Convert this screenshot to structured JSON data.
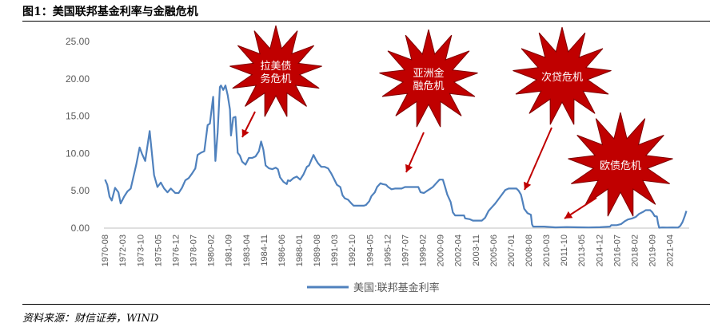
{
  "figure_title": "图1：美国联邦基金利率与金融危机",
  "source_note": "资料来源：财信证券，WIND",
  "chart_data": {
    "type": "line",
    "ylim": [
      0,
      25
    ],
    "y_ticks": [
      "0.00",
      "5.00",
      "10.00",
      "15.00",
      "20.00",
      "25.00"
    ],
    "grid": false,
    "legend_position": "bottom",
    "x_tick_labels": [
      "1970-08",
      "1972-03",
      "1973-10",
      "1975-05",
      "1976-12",
      "1978-07",
      "1980-02",
      "1981-09",
      "1983-04",
      "1984-11",
      "1986-06",
      "1988-01",
      "1989-08",
      "1991-03",
      "1992-10",
      "1994-05",
      "1995-12",
      "1997-07",
      "1999-02",
      "2000-09",
      "2002-04",
      "2003-11",
      "2005-06",
      "2007-01",
      "2008-08",
      "2010-03",
      "2011-10",
      "2013-05",
      "2014-12",
      "2016-07",
      "2018-02",
      "2019-09",
      "2021-04"
    ],
    "line_color": "#4f81bd",
    "series": [
      {
        "name": "美国:联邦基金利率",
        "points": [
          [
            1970.6,
            6.5
          ],
          [
            1970.8,
            5.8
          ],
          [
            1971.0,
            4.2
          ],
          [
            1971.2,
            3.7
          ],
          [
            1971.5,
            5.4
          ],
          [
            1971.8,
            4.8
          ],
          [
            1972.0,
            3.3
          ],
          [
            1972.3,
            4.2
          ],
          [
            1972.6,
            4.9
          ],
          [
            1972.9,
            5.3
          ],
          [
            1973.1,
            6.6
          ],
          [
            1973.4,
            8.5
          ],
          [
            1973.7,
            10.8
          ],
          [
            1973.9,
            10.0
          ],
          [
            1974.2,
            9.0
          ],
          [
            1974.5,
            12.0
          ],
          [
            1974.6,
            13.0
          ],
          [
            1974.8,
            10.0
          ],
          [
            1975.0,
            7.1
          ],
          [
            1975.3,
            5.5
          ],
          [
            1975.6,
            6.1
          ],
          [
            1975.9,
            5.3
          ],
          [
            1976.2,
            4.8
          ],
          [
            1976.5,
            5.3
          ],
          [
            1976.9,
            4.7
          ],
          [
            1977.2,
            4.7
          ],
          [
            1977.5,
            5.4
          ],
          [
            1977.8,
            6.4
          ],
          [
            1978.1,
            6.7
          ],
          [
            1978.4,
            7.3
          ],
          [
            1978.7,
            8.0
          ],
          [
            1978.9,
            9.8
          ],
          [
            1979.2,
            10.1
          ],
          [
            1979.5,
            10.3
          ],
          [
            1979.8,
            13.8
          ],
          [
            1980.0,
            14.0
          ],
          [
            1980.3,
            17.6
          ],
          [
            1980.5,
            9.0
          ],
          [
            1980.7,
            12.8
          ],
          [
            1980.9,
            18.9
          ],
          [
            1981.0,
            19.1
          ],
          [
            1981.2,
            18.5
          ],
          [
            1981.4,
            19.1
          ],
          [
            1981.6,
            17.8
          ],
          [
            1981.8,
            15.9
          ],
          [
            1981.9,
            12.4
          ],
          [
            1982.1,
            14.8
          ],
          [
            1982.3,
            14.9
          ],
          [
            1982.5,
            10.1
          ],
          [
            1982.7,
            9.7
          ],
          [
            1982.9,
            8.9
          ],
          [
            1983.2,
            8.5
          ],
          [
            1983.5,
            9.4
          ],
          [
            1983.8,
            9.4
          ],
          [
            1984.1,
            9.6
          ],
          [
            1984.4,
            10.3
          ],
          [
            1984.6,
            11.6
          ],
          [
            1984.8,
            10.5
          ],
          [
            1985.0,
            8.4
          ],
          [
            1985.3,
            8.0
          ],
          [
            1985.6,
            7.9
          ],
          [
            1985.9,
            8.1
          ],
          [
            1986.1,
            7.9
          ],
          [
            1986.3,
            6.8
          ],
          [
            1986.6,
            6.2
          ],
          [
            1986.9,
            5.9
          ],
          [
            1987.0,
            6.4
          ],
          [
            1987.2,
            6.3
          ],
          [
            1987.5,
            6.7
          ],
          [
            1987.8,
            6.9
          ],
          [
            1988.1,
            6.5
          ],
          [
            1988.4,
            7.2
          ],
          [
            1988.7,
            8.2
          ],
          [
            1988.9,
            8.4
          ],
          [
            1989.1,
            9.1
          ],
          [
            1989.3,
            9.8
          ],
          [
            1989.5,
            9.2
          ],
          [
            1989.7,
            8.7
          ],
          [
            1990.0,
            8.2
          ],
          [
            1990.3,
            8.2
          ],
          [
            1990.6,
            8.0
          ],
          [
            1990.9,
            7.3
          ],
          [
            1991.1,
            6.7
          ],
          [
            1991.4,
            5.8
          ],
          [
            1991.7,
            5.5
          ],
          [
            1991.9,
            4.4
          ],
          [
            1992.1,
            4.0
          ],
          [
            1992.4,
            3.8
          ],
          [
            1992.7,
            3.3
          ],
          [
            1992.9,
            3.0
          ],
          [
            1993.2,
            3.0
          ],
          [
            1993.5,
            3.0
          ],
          [
            1993.8,
            3.0
          ],
          [
            1994.0,
            3.1
          ],
          [
            1994.3,
            3.6
          ],
          [
            1994.5,
            4.3
          ],
          [
            1994.8,
            4.8
          ],
          [
            1995.0,
            5.5
          ],
          [
            1995.3,
            6.0
          ],
          [
            1995.5,
            5.9
          ],
          [
            1995.8,
            5.8
          ],
          [
            1996.0,
            5.5
          ],
          [
            1996.3,
            5.2
          ],
          [
            1996.6,
            5.3
          ],
          [
            1996.9,
            5.3
          ],
          [
            1997.2,
            5.3
          ],
          [
            1997.5,
            5.5
          ],
          [
            1997.8,
            5.5
          ],
          [
            1998.1,
            5.5
          ],
          [
            1998.4,
            5.5
          ],
          [
            1998.7,
            5.5
          ],
          [
            1998.9,
            4.8
          ],
          [
            1999.2,
            4.7
          ],
          [
            1999.5,
            5.0
          ],
          [
            1999.8,
            5.3
          ],
          [
            2000.0,
            5.5
          ],
          [
            2000.3,
            6.0
          ],
          [
            2000.6,
            6.5
          ],
          [
            2000.9,
            6.5
          ],
          [
            2001.1,
            5.5
          ],
          [
            2001.3,
            4.5
          ],
          [
            2001.6,
            3.5
          ],
          [
            2001.8,
            2.1
          ],
          [
            2002.0,
            1.7
          ],
          [
            2002.4,
            1.7
          ],
          [
            2002.8,
            1.7
          ],
          [
            2002.9,
            1.3
          ],
          [
            2003.3,
            1.2
          ],
          [
            2003.6,
            1.0
          ],
          [
            2004.0,
            1.0
          ],
          [
            2004.4,
            1.0
          ],
          [
            2004.7,
            1.4
          ],
          [
            2005.0,
            2.3
          ],
          [
            2005.3,
            2.8
          ],
          [
            2005.6,
            3.3
          ],
          [
            2005.9,
            3.9
          ],
          [
            2006.2,
            4.5
          ],
          [
            2006.5,
            5.1
          ],
          [
            2006.8,
            5.3
          ],
          [
            2007.2,
            5.3
          ],
          [
            2007.5,
            5.3
          ],
          [
            2007.7,
            5.0
          ],
          [
            2007.9,
            4.5
          ],
          [
            2008.0,
            3.9
          ],
          [
            2008.2,
            2.6
          ],
          [
            2008.5,
            2.0
          ],
          [
            2008.8,
            1.8
          ],
          [
            2008.9,
            0.5
          ],
          [
            2009.0,
            0.2
          ],
          [
            2010.0,
            0.2
          ],
          [
            2011.0,
            0.1
          ],
          [
            2012.0,
            0.14
          ],
          [
            2013.0,
            0.11
          ],
          [
            2014.0,
            0.09
          ],
          [
            2015.0,
            0.12
          ],
          [
            2015.9,
            0.2
          ],
          [
            2016.0,
            0.38
          ],
          [
            2016.5,
            0.4
          ],
          [
            2016.9,
            0.55
          ],
          [
            2017.2,
            0.9
          ],
          [
            2017.5,
            1.15
          ],
          [
            2017.9,
            1.3
          ],
          [
            2018.2,
            1.5
          ],
          [
            2018.5,
            1.9
          ],
          [
            2018.9,
            2.2
          ],
          [
            2019.1,
            2.4
          ],
          [
            2019.5,
            2.4
          ],
          [
            2019.7,
            2.1
          ],
          [
            2019.9,
            1.6
          ],
          [
            2020.1,
            1.55
          ],
          [
            2020.2,
            0.65
          ],
          [
            2020.3,
            0.05
          ],
          [
            2020.6,
            0.09
          ],
          [
            2021.0,
            0.08
          ],
          [
            2021.5,
            0.09
          ],
          [
            2022.0,
            0.08
          ],
          [
            2022.2,
            0.3
          ],
          [
            2022.4,
            0.8
          ],
          [
            2022.6,
            1.6
          ],
          [
            2022.75,
            2.3
          ]
        ]
      }
    ],
    "annotations": [
      {
        "text": "拉美债\n务危机"
      },
      {
        "text": "亚洲金\n融危机"
      },
      {
        "text": "次贷危机"
      },
      {
        "text": "欧债危机"
      }
    ]
  }
}
